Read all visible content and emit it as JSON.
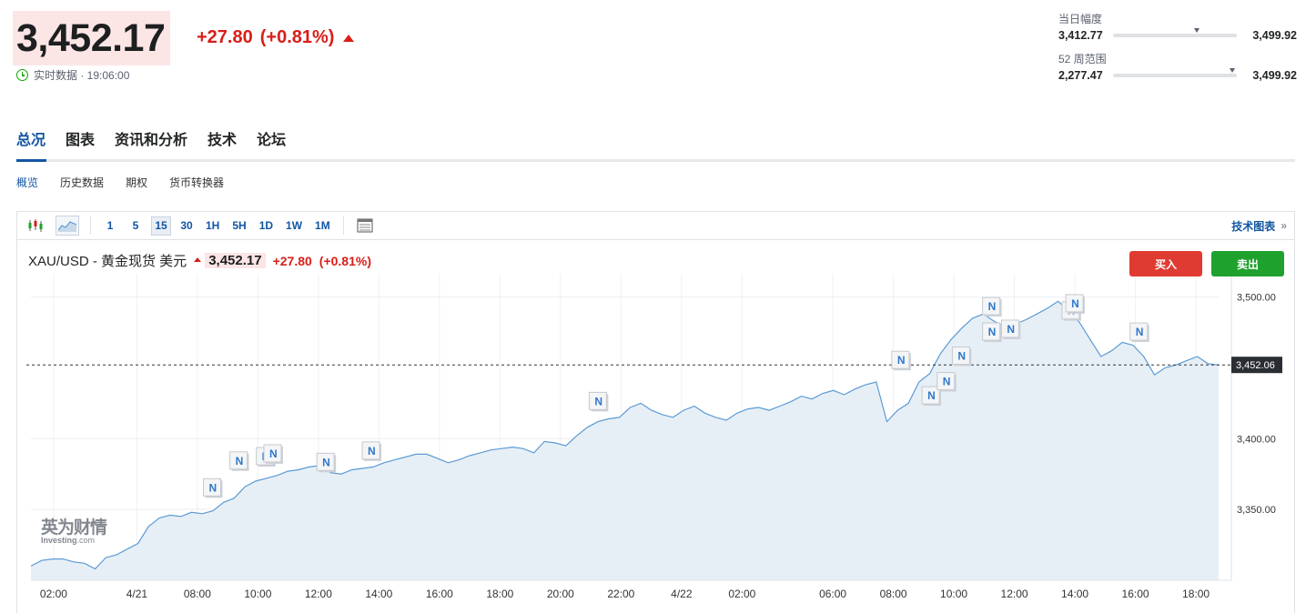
{
  "quote": {
    "last_price": "3,452.17",
    "change_abs": "+27.80",
    "change_pct": "(+0.81%)",
    "realtime_label": "实时数据 · 19:06:00"
  },
  "ranges": {
    "day": {
      "title": "当日幅度",
      "low": "3,412.77",
      "high": "3,499.92",
      "marker_fraction": 0.68
    },
    "week52": {
      "title": "52 周范围",
      "low": "2,277.47",
      "high": "3,499.92",
      "marker_fraction": 0.96
    }
  },
  "main_tabs": [
    "总况",
    "图表",
    "资讯和分析",
    "技术",
    "论坛"
  ],
  "sub_tabs": [
    "概览",
    "历史数据",
    "期权",
    "货币转换器"
  ],
  "toolbar": {
    "intervals": [
      "1",
      "5",
      "15",
      "30",
      "1H",
      "5H",
      "1D",
      "1W",
      "1M"
    ],
    "active_interval": "15",
    "tech_chart_label": "技术图表",
    "tech_chart_arrow": "»",
    "icons": [
      "candlestick-icon",
      "area-chart-icon",
      "table-icon"
    ]
  },
  "chart_header": {
    "symbol": "XAU/USD - 黄金现货 美元",
    "price": "3,452.17",
    "change": "+27.80",
    "change_pct": "(+0.81%)",
    "buy_label": "买入",
    "sell_label": "卖出"
  },
  "watermark": {
    "cn": "英为财情",
    "en": "Investing",
    "en_suffix": ".com"
  },
  "colors": {
    "up": "#d91e18",
    "accent": "#1256a0",
    "buy": "#e03b32",
    "sell": "#1fa12e",
    "line": "#5b9bd5",
    "area": "#e3ecf4"
  },
  "chart_data": {
    "type": "area",
    "ylim": [
      3300,
      3510
    ],
    "y_ticks": [
      "3,500.00",
      "3,400.00",
      "3,350.00"
    ],
    "y_tick_values": [
      3500,
      3400,
      3350
    ],
    "x_ticks": [
      "02:00",
      "4/21",
      "08:00",
      "10:00",
      "12:00",
      "14:00",
      "16:00",
      "18:00",
      "20:00",
      "22:00",
      "4/22",
      "02:00",
      "06:00",
      "08:00",
      "10:00",
      "12:00",
      "14:00",
      "16:00",
      "18:00"
    ],
    "x_tick_pos": [
      3,
      14,
      22,
      30,
      38,
      46,
      54,
      62,
      70,
      78,
      86,
      94,
      106,
      114,
      122,
      130,
      138,
      146,
      154
    ],
    "current_value_label": "3,452.06",
    "current_value": 3452.06,
    "news_marker_label": "N",
    "news_markers": [
      [
        24,
        3355
      ],
      [
        27.5,
        3374
      ],
      [
        31,
        3377
      ],
      [
        32,
        3379
      ],
      [
        39,
        3373
      ],
      [
        45,
        3381
      ],
      [
        75,
        3416
      ],
      [
        115,
        3445
      ],
      [
        119,
        3420
      ],
      [
        121,
        3430
      ],
      [
        123,
        3448
      ],
      [
        127,
        3465
      ],
      [
        129.5,
        3467
      ],
      [
        127,
        3483
      ],
      [
        137.5,
        3480
      ],
      [
        138,
        3485
      ],
      [
        146.5,
        3465
      ]
    ],
    "series": [
      {
        "values": [
          3310,
          3314,
          3315,
          3315,
          3313,
          3312,
          3308,
          3316,
          3318,
          3322,
          3326,
          3338,
          3344,
          3346,
          3345,
          3348,
          3347,
          3349,
          3355,
          3358,
          3366,
          3370,
          3372,
          3374,
          3377,
          3378,
          3380,
          3381,
          3376,
          3375,
          3378,
          3379,
          3380,
          3383,
          3385,
          3387,
          3389,
          3389,
          3386,
          3383,
          3385,
          3388,
          3390,
          3392,
          3393,
          3394,
          3393,
          3390,
          3398,
          3397,
          3395,
          3402,
          3408,
          3412,
          3414,
          3415,
          3422,
          3425,
          3420,
          3417,
          3415,
          3420,
          3423,
          3418,
          3415,
          3413,
          3418,
          3421,
          3422,
          3420,
          3423,
          3426,
          3430,
          3428,
          3432,
          3434,
          3431,
          3435,
          3438,
          3440,
          3412,
          3420,
          3425,
          3440,
          3446,
          3460,
          3470,
          3478,
          3485,
          3488,
          3483,
          3479,
          3481,
          3484,
          3488,
          3492,
          3497,
          3490,
          3482,
          3470,
          3458,
          3462,
          3468,
          3466,
          3458,
          3445,
          3450,
          3452,
          3455,
          3458,
          3453,
          3452
        ]
      }
    ]
  }
}
